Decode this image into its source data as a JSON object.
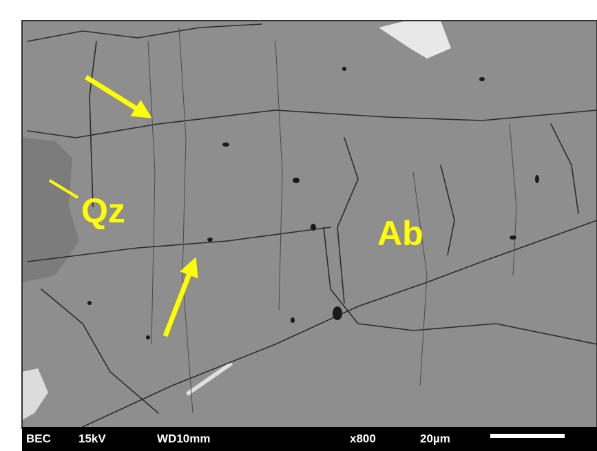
{
  "labels": {
    "qz": "Qz",
    "ab": "Ab"
  },
  "info_bar": {
    "detector": "BEC",
    "voltage": "15kV",
    "working_distance": "WD10mm",
    "magnification": "x800",
    "scale": "20µm"
  }
}
